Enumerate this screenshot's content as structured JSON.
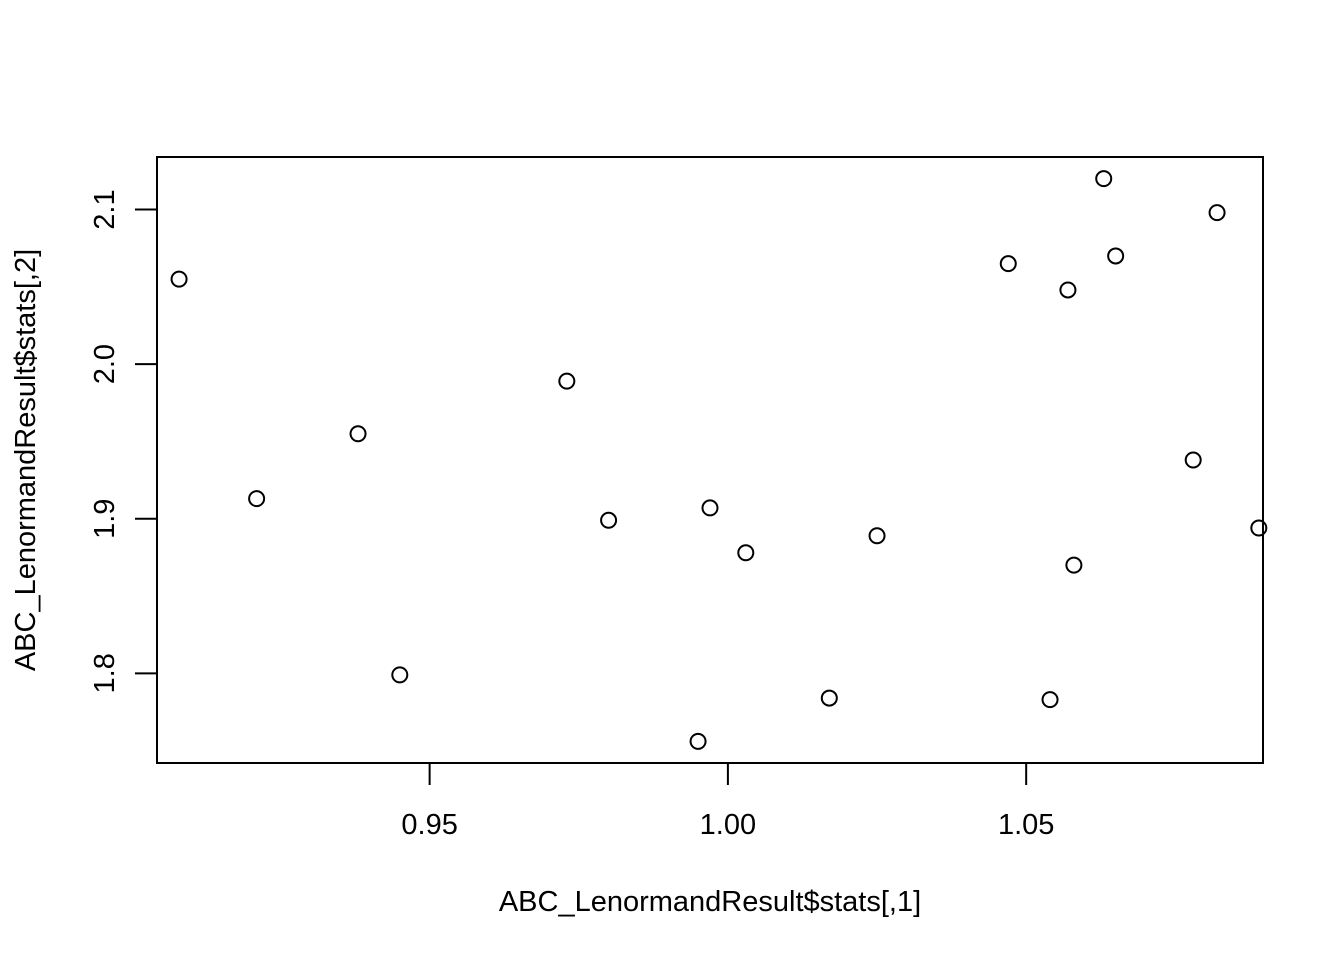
{
  "chart_data": {
    "type": "scatter",
    "title": "",
    "xlabel": "ABC_LenormandResult$stats[,1]",
    "ylabel": "ABC_LenormandResult$stats[,2]",
    "xlim": [
      0.9043,
      1.0897
    ],
    "ylim": [
      1.742,
      2.134
    ],
    "xticks": [
      {
        "value": 0.95,
        "label": "0.95"
      },
      {
        "value": 1.0,
        "label": "1.00"
      },
      {
        "value": 1.05,
        "label": "1.05"
      }
    ],
    "yticks": [
      {
        "value": 1.8,
        "label": "1.8"
      },
      {
        "value": 1.9,
        "label": "1.9"
      },
      {
        "value": 2.0,
        "label": "2.0"
      },
      {
        "value": 2.1,
        "label": "2.1"
      }
    ],
    "grid": false,
    "marker": "open-circle",
    "points": [
      {
        "x": 0.908,
        "y": 2.055
      },
      {
        "x": 0.921,
        "y": 1.913
      },
      {
        "x": 0.938,
        "y": 1.955
      },
      {
        "x": 0.945,
        "y": 1.799
      },
      {
        "x": 0.973,
        "y": 1.989
      },
      {
        "x": 0.98,
        "y": 1.899
      },
      {
        "x": 0.995,
        "y": 1.756
      },
      {
        "x": 0.997,
        "y": 1.907
      },
      {
        "x": 1.003,
        "y": 1.878
      },
      {
        "x": 1.017,
        "y": 1.784
      },
      {
        "x": 1.025,
        "y": 1.889
      },
      {
        "x": 1.047,
        "y": 2.065
      },
      {
        "x": 1.054,
        "y": 1.783
      },
      {
        "x": 1.057,
        "y": 2.048
      },
      {
        "x": 1.058,
        "y": 1.87
      },
      {
        "x": 1.063,
        "y": 2.12
      },
      {
        "x": 1.065,
        "y": 2.07
      },
      {
        "x": 1.078,
        "y": 1.938
      },
      {
        "x": 1.082,
        "y": 2.098
      },
      {
        "x": 1.089,
        "y": 1.894
      }
    ]
  }
}
